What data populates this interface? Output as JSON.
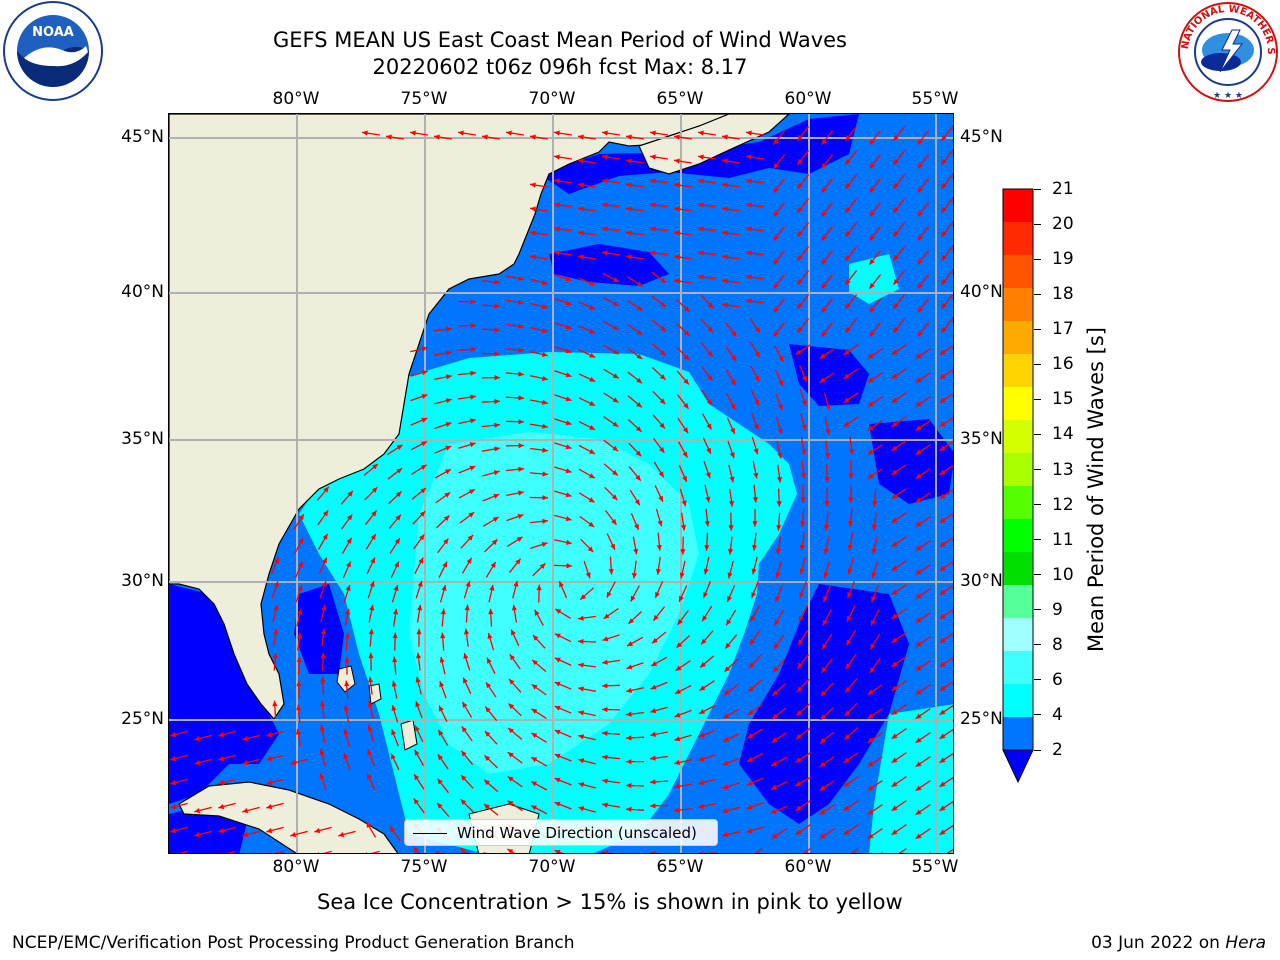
{
  "title": {
    "line1": "GEFS MEAN US East Coast Mean Period of Wind Waves",
    "line2": "20220602 t06z 096h fcst   Max: 8.17"
  },
  "map": {
    "lon_ticks": [
      "80°W",
      "75°W",
      "70°W",
      "65°W",
      "60°W",
      "55°W"
    ],
    "lat_ticks": [
      "45°N",
      "40°N",
      "35°N",
      "30°N",
      "25°N"
    ],
    "colors": {
      "land": "#efeedb",
      "grid": "#b0b0b0",
      "arrow": "#ff0000",
      "period_2_4": "#0076ff",
      "period_4_6": "#00ffff",
      "period_6_8": "#40ffff",
      "period_below_2": "#0000ff"
    },
    "legend_label": "Wind Wave Direction (unscaled)"
  },
  "colorbar": {
    "label": "Mean Period of Wind Waves [s]",
    "ticks": [
      "21",
      "20",
      "19",
      "18",
      "17",
      "16",
      "15",
      "14",
      "13",
      "12",
      "11",
      "10",
      "9",
      "8",
      "6",
      "4",
      "2"
    ],
    "extend": "min",
    "segment_colors": [
      "#ff0000",
      "#ff2a00",
      "#ff5500",
      "#ff8000",
      "#ffaa00",
      "#ffd400",
      "#ffff00",
      "#d4ff00",
      "#aaff00",
      "#55ff00",
      "#00ff00",
      "#00e000",
      "#55ff99",
      "#a0ffff",
      "#40ffff",
      "#00ffff",
      "#0076ff"
    ],
    "extend_color": "#0000ff"
  },
  "logos": {
    "left": "NOAA",
    "right_ring": "NATIONAL WEATHER SERVICE"
  },
  "note": "Sea Ice Concentration > 15% is shown in pink to yellow",
  "footer": {
    "left": "NCEP/EMC/Verification Post Processing Product Generation Branch",
    "date": "03 Jun 2022 on ",
    "machine": "Hera"
  }
}
